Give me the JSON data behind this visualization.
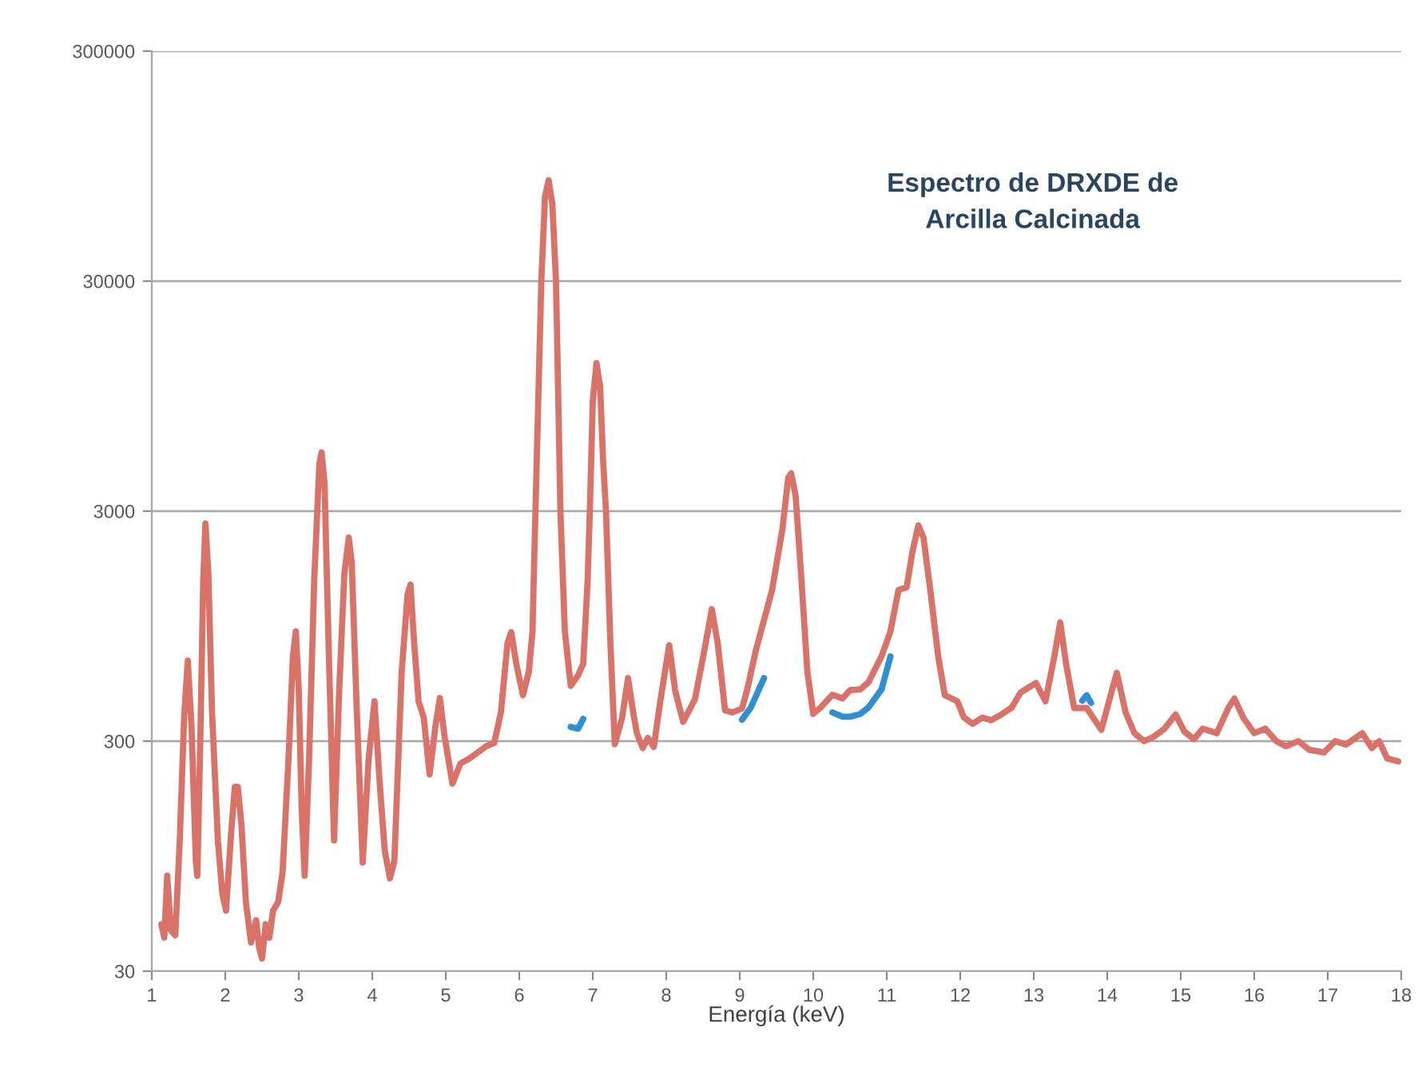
{
  "chart_data": {
    "type": "line",
    "title": "Espectro de DRXDE de\nArcilla Calcinada",
    "xlabel": "Energía (keV)",
    "x": [
      1.13,
      1.17,
      1.21,
      1.26,
      1.32,
      1.38,
      1.44,
      1.49,
      1.54,
      1.6,
      1.62,
      1.66,
      1.7,
      1.73,
      1.77,
      1.82,
      1.9,
      1.96,
      2.01,
      2.08,
      2.13,
      2.17,
      2.22,
      2.28,
      2.35,
      2.42,
      2.46,
      2.5,
      2.55,
      2.6,
      2.65,
      2.72,
      2.78,
      2.86,
      2.92,
      2.96,
      3.0,
      3.04,
      3.08,
      3.14,
      3.21,
      3.28,
      3.31,
      3.35,
      3.41,
      3.48,
      3.55,
      3.62,
      3.68,
      3.72,
      3.79,
      3.87,
      3.95,
      4.03,
      4.1,
      4.17,
      4.24,
      4.3,
      4.4,
      4.48,
      4.52,
      4.57,
      4.63,
      4.7,
      4.78,
      4.86,
      4.92,
      4.98,
      5.09,
      5.2,
      5.32,
      5.45,
      5.55,
      5.66,
      5.75,
      5.84,
      5.89,
      5.96,
      6.05,
      6.13,
      6.18,
      6.22,
      6.3,
      6.35,
      6.4,
      6.45,
      6.5,
      6.56,
      6.62,
      6.7,
      6.8,
      6.87,
      6.93,
      6.96,
      7.0,
      7.05,
      7.1,
      7.14,
      7.18,
      7.24,
      7.3,
      7.4,
      7.48,
      7.55,
      7.6,
      7.68,
      7.75,
      7.83,
      7.92,
      8.04,
      8.12,
      8.23,
      8.39,
      8.52,
      8.62,
      8.7,
      8.8,
      8.9,
      9.03,
      9.1,
      9.22,
      9.44,
      9.58,
      9.66,
      9.7,
      9.76,
      9.84,
      9.92,
      10.0,
      10.1,
      10.26,
      10.4,
      10.5,
      10.64,
      10.75,
      10.93,
      11.05,
      11.16,
      11.27,
      11.35,
      11.43,
      11.5,
      11.6,
      11.7,
      11.79,
      11.96,
      12.05,
      12.17,
      12.3,
      12.42,
      12.56,
      12.7,
      12.82,
      13.03,
      13.16,
      13.28,
      13.36,
      13.44,
      13.55,
      13.72,
      13.92,
      14.05,
      14.13,
      14.25,
      14.37,
      14.5,
      14.63,
      14.78,
      14.93,
      15.05,
      15.18,
      15.3,
      15.49,
      15.65,
      15.73,
      15.85,
      16.0,
      16.15,
      16.3,
      16.43,
      16.6,
      16.75,
      16.95,
      17.1,
      17.25,
      17.47,
      17.6,
      17.7,
      17.81,
      17.96
    ],
    "series": [
      {
        "color": "#2f8fd0",
        "x": [
          6.7,
          6.8,
          6.87,
          8.0,
          9.03,
          9.15,
          9.33,
          9.8,
          10.26,
          10.4,
          10.5,
          10.64,
          10.75,
          10.93,
          11.05,
          12.0,
          13.66,
          13.72,
          13.78
        ],
        "values": [
          346,
          340,
          375,
          null,
          372,
          420,
          564,
          null,
          400,
          383,
          383,
          394,
          420,
          504,
          700,
          null,
          450,
          475,
          440
        ]
      },
      {
        "color": "#d9736a",
        "values": [
          48,
          42,
          78,
          45,
          43,
          110,
          380,
          672,
          350,
          90,
          78,
          300,
          1500,
          2650,
          1600,
          400,
          110,
          65,
          55,
          120,
          190,
          190,
          130,
          60,
          40,
          50,
          38,
          34,
          48,
          42,
          55,
          60,
          81,
          250,
          700,
          900,
          500,
          150,
          78,
          250,
          1500,
          4800,
          5400,
          4000,
          700,
          111,
          500,
          1600,
          2300,
          1800,
          400,
          89,
          250,
          447,
          200,
          100,
          76,
          90,
          600,
          1300,
          1437,
          800,
          447,
          380,
          215,
          350,
          462,
          320,
          196,
          240,
          252,
          270,
          285,
          295,
          400,
          800,
          894,
          650,
          475,
          600,
          900,
          3000,
          30000,
          70000,
          82400,
          65000,
          30000,
          3000,
          900,
          522,
          580,
          651,
          1500,
          3000,
          9000,
          13200,
          10500,
          5000,
          3000,
          800,
          291,
          380,
          564,
          400,
          325,
          280,
          310,
          283,
          450,
          784,
          500,
          364,
          456,
          750,
          1124,
          800,
          408,
          400,
          416,
          500,
          747,
          1362,
          2500,
          4200,
          4380,
          3500,
          1500,
          600,
          394,
          420,
          477,
          460,
          500,
          504,
          540,
          703,
          900,
          1362,
          1400,
          2000,
          2600,
          2300,
          1300,
          700,
          475,
          447,
          380,
          357,
          380,
          370,
          392,
          420,
          488,
          537,
          447,
          700,
          985,
          650,
          418,
          418,
          336,
          480,
          595,
          400,
          325,
          300,
          313,
          340,
          392,
          330,
          306,
          340,
          325,
          420,
          460,
          380,
          325,
          340,
          300,
          285,
          300,
          275,
          268,
          300,
          290,
          325,
          280,
          300,
          252,
          245
        ]
      }
    ],
    "log": "y",
    "xlim": [
      1,
      18
    ],
    "xticks": [
      1,
      2,
      3,
      4,
      5,
      6,
      7,
      8,
      9,
      10,
      11,
      12,
      13,
      14,
      15,
      16,
      17,
      18
    ],
    "ylim": [
      30,
      300000
    ],
    "yticks": [
      30,
      300,
      3000,
      30000,
      300000
    ],
    "grid": "y",
    "marker": "none",
    "line_style": "solid"
  }
}
